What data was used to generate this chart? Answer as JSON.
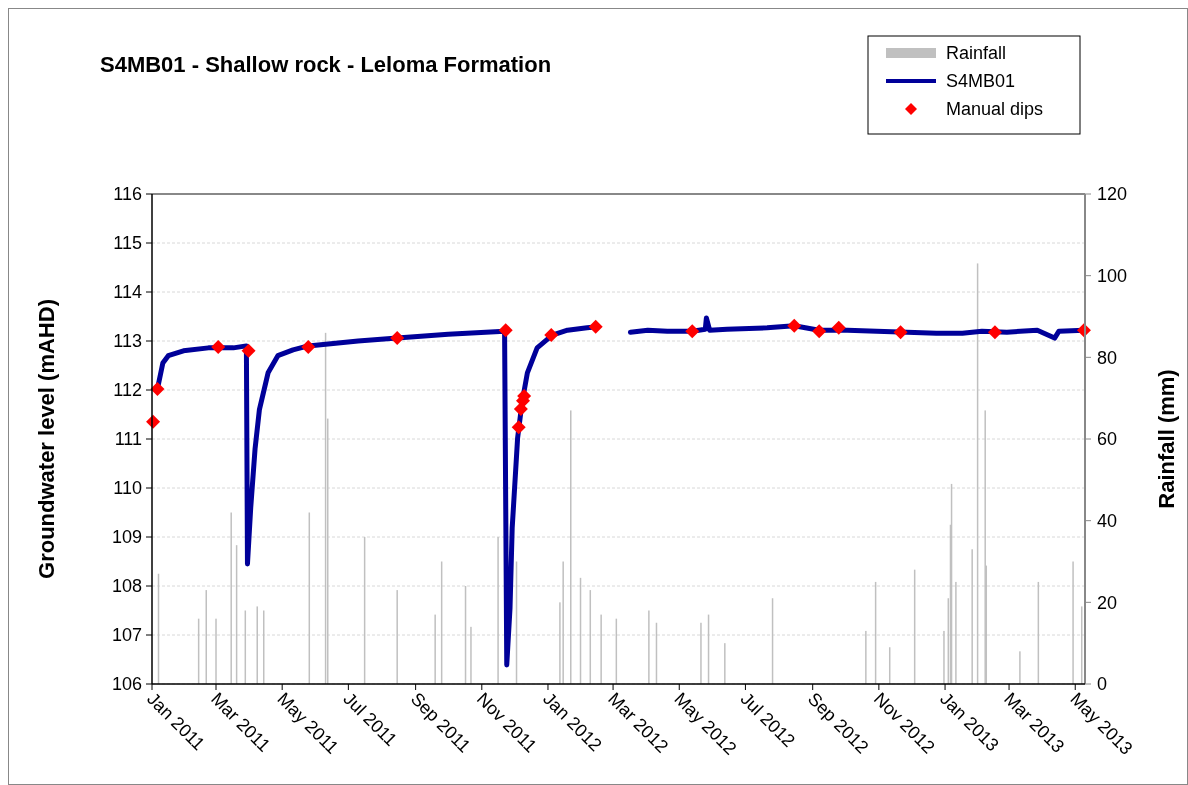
{
  "chart_data": {
    "type": "line",
    "title": "S4MB01 - Shallow rock - Leloma Formation",
    "ylabel": "Groundwater level (mAHD)",
    "y2label": "Rainfall (mm)",
    "xlim": [
      "2011-01-01",
      "2013-05-10"
    ],
    "xticks": [
      {
        "value": "2011-01-01",
        "label": "Jan 2011"
      },
      {
        "value": "2011-03-01",
        "label": "Mar 2011"
      },
      {
        "value": "2011-05-01",
        "label": "May 2011"
      },
      {
        "value": "2011-07-01",
        "label": "Jul 2011"
      },
      {
        "value": "2011-09-01",
        "label": "Sep 2011"
      },
      {
        "value": "2011-11-01",
        "label": "Nov 2011"
      },
      {
        "value": "2012-01-01",
        "label": "Jan 2012"
      },
      {
        "value": "2012-03-01",
        "label": "Mar 2012"
      },
      {
        "value": "2012-05-01",
        "label": "May 2012"
      },
      {
        "value": "2012-07-01",
        "label": "Jul 2012"
      },
      {
        "value": "2012-09-01",
        "label": "Sep 2012"
      },
      {
        "value": "2012-11-01",
        "label": "Nov 2012"
      },
      {
        "value": "2013-01-01",
        "label": "Jan 2013"
      },
      {
        "value": "2013-03-01",
        "label": "Mar 2013"
      },
      {
        "value": "2013-05-01",
        "label": "May 2013"
      }
    ],
    "ylim": [
      106,
      116
    ],
    "yticks": [
      106,
      107,
      108,
      109,
      110,
      111,
      112,
      113,
      114,
      115,
      116
    ],
    "y2lim": [
      0,
      120
    ],
    "y2ticks": [
      0,
      20,
      40,
      60,
      80,
      100,
      120
    ],
    "grid": "y",
    "legend": "top right",
    "series": [
      {
        "name": "Rainfall",
        "type": "bar",
        "axis": "y2",
        "color": "#c0c0c0",
        "x": [
          "2011-01-07",
          "2011-02-13",
          "2011-02-20",
          "2011-03-01",
          "2011-03-15",
          "2011-03-20",
          "2011-03-28",
          "2011-04-08",
          "2011-04-14",
          "2011-05-26",
          "2011-06-10",
          "2011-06-12",
          "2011-07-16",
          "2011-08-15",
          "2011-09-19",
          "2011-09-25",
          "2011-10-17",
          "2011-10-22",
          "2011-11-16",
          "2011-12-03",
          "2012-01-12",
          "2012-01-15",
          "2012-01-22",
          "2012-01-31",
          "2012-02-09",
          "2012-02-19",
          "2012-03-04",
          "2012-04-03",
          "2012-04-10",
          "2012-05-21",
          "2012-05-28",
          "2012-06-12",
          "2012-07-26",
          "2012-10-20",
          "2012-10-29",
          "2012-11-11",
          "2012-12-04",
          "2012-12-31",
          "2013-01-04",
          "2013-01-06",
          "2013-01-07",
          "2013-01-11",
          "2013-01-26",
          "2013-01-31",
          "2013-02-07",
          "2013-02-08",
          "2013-03-11",
          "2013-03-28",
          "2013-04-29",
          "2013-05-07"
        ],
        "values": [
          27,
          16,
          23,
          16,
          42,
          34,
          18,
          19,
          18,
          42,
          86,
          65,
          36,
          23,
          17,
          30,
          24,
          14,
          36,
          30,
          20,
          30,
          67,
          26,
          23,
          17,
          16,
          18,
          15,
          15,
          17,
          10,
          21,
          13,
          25,
          9,
          28,
          13,
          21,
          39,
          49,
          25,
          33,
          103,
          67,
          29,
          8,
          25,
          30,
          19
        ]
      },
      {
        "name": "S4MB01",
        "color": "#000099",
        "marker": "none",
        "x": [
          "2011-01-06",
          "2011-01-11",
          "2011-01-16",
          "2011-01-30",
          "2011-02-22",
          "2011-03-17",
          "2011-03-29",
          "2011-03-30",
          "2011-04-02",
          "2011-04-06",
          "2011-04-10",
          "2011-04-18",
          "2011-04-27",
          "2011-05-11",
          "2011-05-25",
          "2011-07-10",
          "2011-08-15",
          "2011-10-01",
          "2011-11-22",
          "2011-11-24",
          "2011-11-27",
          "2011-11-29",
          "2011-12-04",
          "2011-12-08",
          "2011-12-13",
          "2011-12-22",
          "2012-01-05",
          "2012-01-19",
          "2012-02-06",
          "2012-02-16",
          "2012-03-01",
          "2012-03-17",
          "2012-04-02",
          "2012-04-20",
          "2012-05-13",
          "2012-05-25",
          "2012-05-26",
          "2012-05-29",
          "2012-06-14",
          "2012-07-21",
          "2012-08-15",
          "2012-09-07",
          "2012-10-03",
          "2012-10-30",
          "2012-11-27",
          "2012-12-24",
          "2013-01-17",
          "2013-02-04",
          "2013-02-27",
          "2013-03-27",
          "2013-04-12",
          "2013-04-16",
          "2013-05-09"
        ],
        "values": [
          112.02,
          112.55,
          112.7,
          112.8,
          112.86,
          112.86,
          112.9,
          108.45,
          109.6,
          110.8,
          111.6,
          112.35,
          112.7,
          112.82,
          112.9,
          113.0,
          113.06,
          113.14,
          113.2,
          106.39,
          107.55,
          109.18,
          111.02,
          111.73,
          112.35,
          112.86,
          113.12,
          113.22,
          113.27,
          113.29,
          null,
          113.18,
          113.22,
          113.2,
          113.2,
          113.24,
          113.47,
          113.22,
          113.24,
          113.27,
          113.31,
          113.22,
          113.22,
          113.2,
          113.18,
          113.16,
          113.16,
          113.2,
          113.18,
          113.22,
          113.06,
          113.2,
          113.22
        ]
      },
      {
        "name": "Manual dips",
        "type": "scatter",
        "color": "#ff0000",
        "marker": "diamond",
        "x": [
          "2011-01-02",
          "2011-01-06",
          "2011-03-03",
          "2011-03-31",
          "2011-05-25",
          "2011-08-15",
          "2011-11-23",
          "2011-12-05",
          "2011-12-07",
          "2011-12-09",
          "2011-12-10",
          "2012-01-04",
          "2012-02-14",
          "2012-05-13",
          "2012-08-15",
          "2012-09-07",
          "2012-09-25",
          "2012-11-21",
          "2013-02-16",
          "2013-05-09"
        ],
        "values": [
          111.35,
          112.02,
          112.88,
          112.8,
          112.88,
          113.06,
          113.22,
          111.24,
          111.61,
          111.78,
          111.88,
          113.12,
          113.29,
          113.2,
          113.31,
          113.2,
          113.27,
          113.18,
          113.18,
          113.22
        ]
      }
    ]
  }
}
